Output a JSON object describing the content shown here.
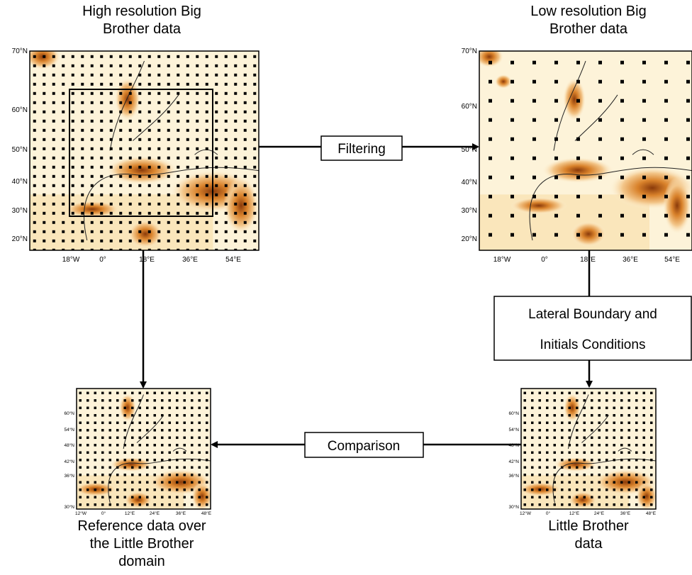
{
  "panels": [
    {
      "title": [
        "High resolution Big",
        "Brother data"
      ],
      "y_labels": [
        "70°N",
        "60°N",
        "50°N",
        "40°N",
        "30°N",
        "20°N"
      ],
      "x_labels": [
        "18°W",
        "0°",
        "18°E",
        "36°E",
        "54°E"
      ]
    },
    {
      "title": [
        "Low resolution Big",
        "Brother data"
      ],
      "y_labels": [
        "70°N",
        "60°N",
        "50°N",
        "40°N",
        "30°N",
        "20°N"
      ],
      "x_labels": [
        "18°W",
        "0°",
        "18°E",
        "36°E",
        "54°E"
      ]
    },
    {
      "title": [
        "Reference data over",
        "the Little Brother",
        "domain"
      ],
      "y_labels": [
        "60°N",
        "54°N",
        "48°N",
        "42°N",
        "36°N",
        "30°N"
      ],
      "x_labels": [
        "12°W",
        "0°",
        "12°E",
        "24°E",
        "36°E",
        "48°E"
      ]
    },
    {
      "title": [
        "Little Brother",
        "data"
      ],
      "y_labels": [
        "60°N",
        "54°N",
        "48°N",
        "42°N",
        "36°N",
        "30°N"
      ],
      "x_labels": [
        "12°W",
        "0°",
        "12°E",
        "24°E",
        "36°E",
        "48°E"
      ]
    }
  ],
  "boxes": {
    "filtering": "Filtering",
    "boundary": [
      "Lateral Boundary and",
      "Initials Conditions"
    ],
    "comparison": "Comparison"
  }
}
